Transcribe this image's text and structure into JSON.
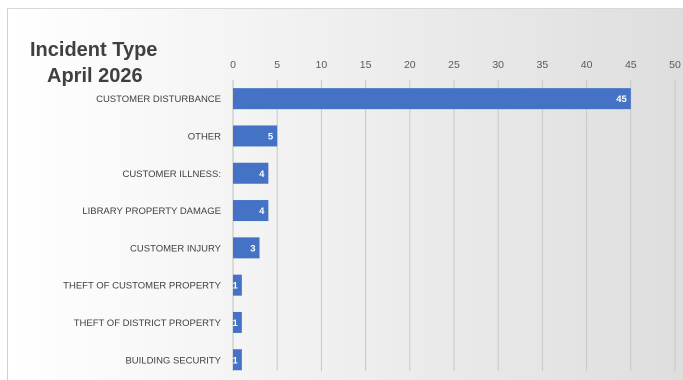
{
  "chart_data": {
    "type": "bar",
    "orientation": "horizontal",
    "title": [
      "Incident Type",
      "April 2026"
    ],
    "categories": [
      "CUSTOMER DISTURBANCE",
      "OTHER",
      "CUSTOMER ILLNESS:",
      "LIBRARY PROPERTY DAMAGE",
      "CUSTOMER INJURY",
      "THEFT OF CUSTOMER PROPERTY",
      "THEFT OF DISTRICT PROPERTY",
      "BUILDING SECURITY"
    ],
    "values": [
      45,
      5,
      4,
      4,
      3,
      1,
      1,
      1
    ],
    "xlim": [
      0,
      50
    ],
    "xticks": [
      0,
      5,
      10,
      15,
      20,
      25,
      30,
      35,
      40,
      45,
      50
    ],
    "x_axis_position": "top",
    "grid": true,
    "bar_color": "#4472c4",
    "data_labels": true
  }
}
